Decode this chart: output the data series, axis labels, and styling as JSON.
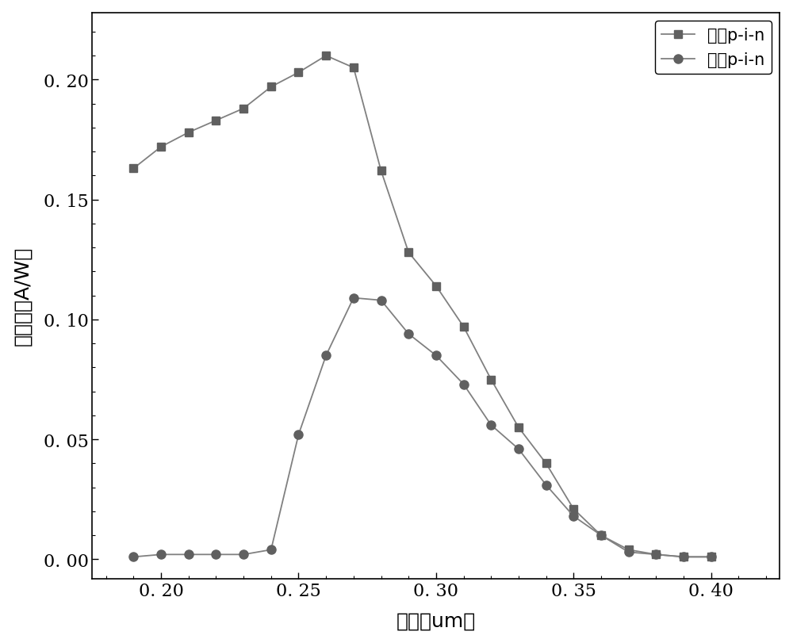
{
  "coaxial_x": [
    0.19,
    0.2,
    0.21,
    0.22,
    0.23,
    0.24,
    0.25,
    0.26,
    0.27,
    0.28,
    0.29,
    0.3,
    0.31,
    0.32,
    0.33,
    0.34,
    0.35,
    0.36,
    0.37,
    0.38,
    0.39,
    0.4
  ],
  "coaxial_y": [
    0.163,
    0.172,
    0.178,
    0.183,
    0.188,
    0.197,
    0.203,
    0.21,
    0.205,
    0.162,
    0.128,
    0.114,
    0.097,
    0.075,
    0.055,
    0.04,
    0.021,
    0.01,
    0.004,
    0.002,
    0.001,
    0.001
  ],
  "regular_x": [
    0.19,
    0.2,
    0.21,
    0.22,
    0.23,
    0.24,
    0.25,
    0.26,
    0.27,
    0.28,
    0.29,
    0.3,
    0.31,
    0.32,
    0.33,
    0.34,
    0.35,
    0.36,
    0.37,
    0.38,
    0.39,
    0.4
  ],
  "regular_y": [
    0.001,
    0.002,
    0.002,
    0.002,
    0.002,
    0.004,
    0.052,
    0.085,
    0.109,
    0.108,
    0.094,
    0.085,
    0.073,
    0.056,
    0.046,
    0.031,
    0.018,
    0.01,
    0.003,
    0.002,
    0.001,
    0.001
  ],
  "line_color": "#808080",
  "marker_color": "#606060",
  "xlabel_cn": "波长",
  "xlabel_en": "um",
  "ylabel_cn": "响应度",
  "ylabel_en": "A/W",
  "legend1_cn": "同轴",
  "legend1_en": "p-i-n",
  "legend2_cn": "常规",
  "legend2_en": "p-i-n",
  "xlim": [
    0.175,
    0.425
  ],
  "ylim": [
    -0.008,
    0.228
  ],
  "xticks": [
    0.2,
    0.25,
    0.3,
    0.35,
    0.4
  ],
  "yticks": [
    0.0,
    0.05,
    0.1,
    0.15,
    0.2
  ],
  "xtick_labels": [
    "0. 20",
    "0. 25",
    "0. 30",
    "0. 35",
    "0. 40"
  ],
  "ytick_labels": [
    "0. 00",
    "0. 05",
    "0. 10",
    "0. 15",
    "0. 20"
  ],
  "background_color": "#ffffff",
  "label_fontsize": 18,
  "tick_fontsize": 16,
  "legend_fontsize": 15
}
